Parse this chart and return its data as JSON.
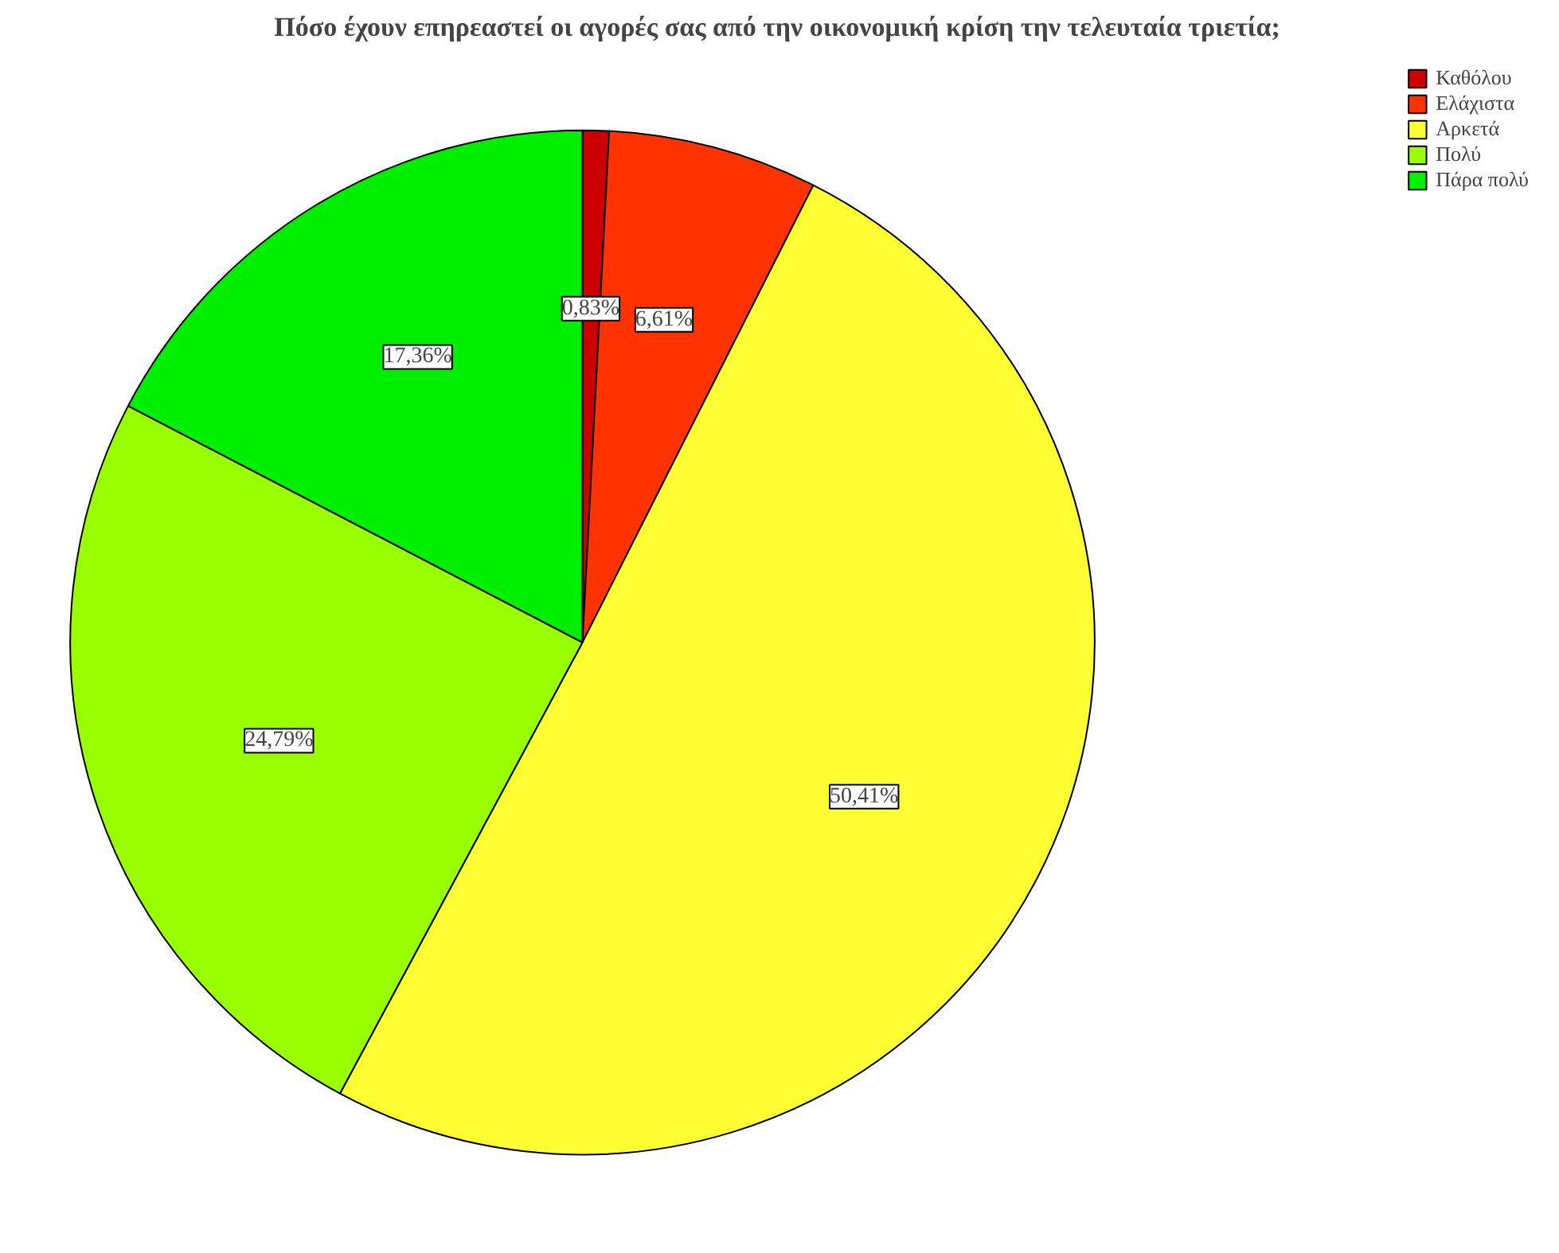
{
  "chart_data": {
    "type": "pie",
    "title": "Πόσο έχουν επηρεαστεί οι αγορές σας από την οικονομική κρίση την τελευταία τριετία;",
    "categories": [
      "Καθόλου",
      "Ελάχιστα",
      "Αρκετά",
      "Πολύ",
      "Πάρα πολύ"
    ],
    "values": [
      0.83,
      6.61,
      50.41,
      24.79,
      17.36
    ],
    "value_labels": [
      "0,83%",
      "6,61%",
      "50,41%",
      "24,79%",
      "17,36%"
    ],
    "colors": [
      "#cc0000",
      "#ff3300",
      "#ffff33",
      "#99ff00",
      "#00ee00"
    ],
    "legend": "top right"
  }
}
